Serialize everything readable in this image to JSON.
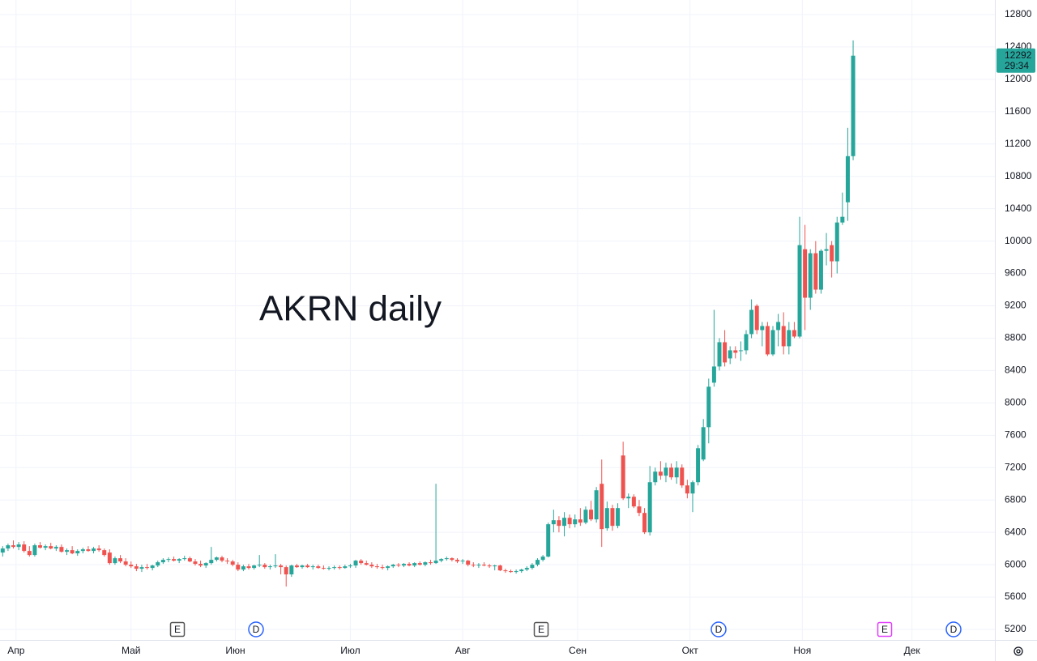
{
  "chart_data": {
    "type": "candlestick",
    "title": "AKRN daily",
    "up_color": "#26a69a",
    "down_color": "#ef5350",
    "ylim": [
      5070,
      12980
    ],
    "xlim": [
      -0.5,
      185.5
    ],
    "grid": true,
    "yticks": [
      5200,
      5600,
      6000,
      6400,
      6800,
      7200,
      7600,
      8000,
      8400,
      8800,
      9200,
      9600,
      10000,
      10400,
      10800,
      11200,
      11600,
      12000,
      12400,
      12800
    ],
    "xticks": [
      {
        "value": 2.5,
        "label": "Апр"
      },
      {
        "value": 24,
        "label": "Май"
      },
      {
        "value": 43.5,
        "label": "Июн"
      },
      {
        "value": 65,
        "label": "Июл"
      },
      {
        "value": 86,
        "label": "Авг"
      },
      {
        "value": 107.5,
        "label": "Сен"
      },
      {
        "value": 128.5,
        "label": "Окт"
      },
      {
        "value": 149.5,
        "label": "Ноя"
      },
      {
        "value": 170,
        "label": "Дек"
      }
    ],
    "last_price": 12292,
    "countdown": "29:34",
    "events": [
      "E",
      "D",
      "E",
      "D",
      "E",
      "D"
    ],
    "ohlc": [
      [
        6150,
        6230,
        6100,
        6200
      ],
      [
        6200,
        6260,
        6170,
        6240
      ],
      [
        6240,
        6300,
        6200,
        6220
      ],
      [
        6220,
        6280,
        6180,
        6250
      ],
      [
        6250,
        6290,
        6150,
        6170
      ],
      [
        6170,
        6230,
        6100,
        6120
      ],
      [
        6120,
        6260,
        6100,
        6240
      ],
      [
        6240,
        6280,
        6200,
        6210
      ],
      [
        6210,
        6250,
        6180,
        6230
      ],
      [
        6230,
        6270,
        6190,
        6200
      ],
      [
        6200,
        6240,
        6170,
        6220
      ],
      [
        6220,
        6250,
        6150,
        6160
      ],
      [
        6160,
        6200,
        6120,
        6180
      ],
      [
        6180,
        6230,
        6130,
        6140
      ],
      [
        6140,
        6190,
        6110,
        6170
      ],
      [
        6170,
        6210,
        6140,
        6190
      ],
      [
        6190,
        6230,
        6160,
        6170
      ],
      [
        6170,
        6220,
        6140,
        6200
      ],
      [
        6200,
        6240,
        6160,
        6180
      ],
      [
        6180,
        6200,
        6100,
        6120
      ],
      [
        6150,
        6190,
        6000,
        6020
      ],
      [
        6020,
        6100,
        6000,
        6080
      ],
      [
        6080,
        6120,
        6020,
        6040
      ],
      [
        6040,
        6080,
        5980,
        6000
      ],
      [
        6000,
        6040,
        5960,
        5980
      ],
      [
        5980,
        6010,
        5920,
        5950
      ],
      [
        5950,
        6000,
        5910,
        5970
      ],
      [
        5970,
        6010,
        5940,
        5960
      ],
      [
        5960,
        6000,
        5930,
        5990
      ],
      [
        5990,
        6050,
        5970,
        6030
      ],
      [
        6030,
        6080,
        6010,
        6060
      ],
      [
        6060,
        6090,
        6030,
        6070
      ],
      [
        6070,
        6100,
        6040,
        6050
      ],
      [
        6050,
        6080,
        6020,
        6070
      ],
      [
        6070,
        6110,
        6050,
        6080
      ],
      [
        6080,
        6100,
        6030,
        6040
      ],
      [
        6040,
        6070,
        5990,
        6010
      ],
      [
        6010,
        6050,
        5970,
        5990
      ],
      [
        5990,
        6030,
        5960,
        6020
      ],
      [
        6020,
        6220,
        6000,
        6060
      ],
      [
        6060,
        6100,
        6040,
        6090
      ],
      [
        6090,
        6110,
        6030,
        6050
      ],
      [
        6050,
        6080,
        6010,
        6040
      ],
      [
        6040,
        6060,
        5980,
        6000
      ],
      [
        6000,
        6030,
        5920,
        5940
      ],
      [
        5940,
        6000,
        5920,
        5980
      ],
      [
        5980,
        6010,
        5940,
        5960
      ],
      [
        5960,
        6000,
        5940,
        5990
      ],
      [
        5990,
        6120,
        5970,
        6000
      ],
      [
        6000,
        6020,
        5950,
        5970
      ],
      [
        5970,
        6000,
        5940,
        5980
      ],
      [
        5980,
        6130,
        5960,
        5990
      ],
      [
        5990,
        6010,
        5880,
        5970
      ],
      [
        5970,
        5990,
        5730,
        5880
      ],
      [
        5880,
        6000,
        5850,
        5990
      ],
      [
        5990,
        6010,
        5960,
        5970
      ],
      [
        5970,
        6000,
        5950,
        5990
      ],
      [
        5990,
        6010,
        5960,
        5970
      ],
      [
        5970,
        6000,
        5940,
        5980
      ],
      [
        5980,
        6000,
        5950,
        5960
      ],
      [
        5960,
        5990,
        5940,
        5950
      ],
      [
        5950,
        5980,
        5930,
        5960
      ],
      [
        5960,
        5990,
        5940,
        5970
      ],
      [
        5970,
        5990,
        5940,
        5960
      ],
      [
        5960,
        6000,
        5950,
        5980
      ],
      [
        5980,
        6010,
        5960,
        5990
      ],
      [
        5990,
        6060,
        5960,
        6050
      ],
      [
        6050,
        6070,
        6000,
        6020
      ],
      [
        6020,
        6050,
        5990,
        6000
      ],
      [
        6000,
        6030,
        5960,
        5980
      ],
      [
        5980,
        6010,
        5950,
        5970
      ],
      [
        5970,
        6000,
        5940,
        5960
      ],
      [
        5960,
        5990,
        5930,
        5980
      ],
      [
        5980,
        6010,
        5960,
        6000
      ],
      [
        6000,
        6020,
        5970,
        5990
      ],
      [
        5990,
        6020,
        5970,
        6010
      ],
      [
        6010,
        6030,
        5980,
        5990
      ],
      [
        5990,
        6030,
        5970,
        6020
      ],
      [
        6020,
        6040,
        5990,
        6000
      ],
      [
        6000,
        6040,
        5980,
        6030
      ],
      [
        6030,
        6060,
        6000,
        6020
      ],
      [
        6020,
        7000,
        6010,
        6050
      ],
      [
        6050,
        6080,
        6030,
        6070
      ],
      [
        6070,
        6100,
        6050,
        6080
      ],
      [
        6080,
        6090,
        6040,
        6060
      ],
      [
        6060,
        6080,
        6020,
        6040
      ],
      [
        6040,
        6070,
        6010,
        6050
      ],
      [
        6050,
        6060,
        5980,
        6000
      ],
      [
        6000,
        6030,
        5970,
        5990
      ],
      [
        5990,
        6020,
        5960,
        6000
      ],
      [
        6000,
        6030,
        5980,
        5990
      ],
      [
        5990,
        6010,
        5960,
        5980
      ],
      [
        5980,
        6000,
        5930,
        5990
      ],
      [
        5990,
        6000,
        5920,
        5930
      ],
      [
        5930,
        5950,
        5900,
        5920
      ],
      [
        5920,
        5940,
        5900,
        5910
      ],
      [
        5910,
        5940,
        5890,
        5920
      ],
      [
        5920,
        5950,
        5900,
        5940
      ],
      [
        5940,
        5980,
        5920,
        5960
      ],
      [
        5960,
        6020,
        5940,
        6000
      ],
      [
        6000,
        6080,
        5980,
        6060
      ],
      [
        6060,
        6120,
        6040,
        6100
      ],
      [
        6100,
        6520,
        6090,
        6500
      ],
      [
        6500,
        6680,
        6400,
        6550
      ],
      [
        6550,
        6600,
        6400,
        6480
      ],
      [
        6480,
        6650,
        6350,
        6580
      ],
      [
        6580,
        6620,
        6450,
        6500
      ],
      [
        6500,
        6620,
        6460,
        6560
      ],
      [
        6560,
        6700,
        6480,
        6520
      ],
      [
        6520,
        6720,
        6500,
        6680
      ],
      [
        6680,
        6790,
        6540,
        6560
      ],
      [
        6560,
        6960,
        6520,
        6920
      ],
      [
        7000,
        7300,
        6220,
        6440
      ],
      [
        6450,
        6780,
        6420,
        6700
      ],
      [
        6700,
        6740,
        6420,
        6480
      ],
      [
        6480,
        6760,
        6450,
        6700
      ],
      [
        7350,
        7520,
        6800,
        6820
      ],
      [
        6820,
        6880,
        6700,
        6840
      ],
      [
        6840,
        6870,
        6700,
        6720
      ],
      [
        6720,
        6800,
        6600,
        6640
      ],
      [
        6640,
        6700,
        6380,
        6400
      ],
      [
        6400,
        7220,
        6360,
        7020
      ],
      [
        7020,
        7200,
        6980,
        7150
      ],
      [
        7150,
        7280,
        7050,
        7100
      ],
      [
        7100,
        7260,
        7020,
        7200
      ],
      [
        7200,
        7250,
        7050,
        7080
      ],
      [
        7080,
        7280,
        7000,
        7200
      ],
      [
        7200,
        7240,
        6950,
        6980
      ],
      [
        6980,
        7050,
        6820,
        6880
      ],
      [
        6880,
        7040,
        6650,
        7020
      ],
      [
        7020,
        7480,
        6980,
        7440
      ],
      [
        7300,
        7800,
        7280,
        7700
      ],
      [
        7700,
        8300,
        7500,
        8200
      ],
      [
        8250,
        9150,
        8200,
        8450
      ],
      [
        8450,
        8800,
        8400,
        8750
      ],
      [
        8750,
        8900,
        8450,
        8500
      ],
      [
        8550,
        8700,
        8480,
        8650
      ],
      [
        8650,
        8700,
        8550,
        8620
      ],
      [
        8640,
        8760,
        8520,
        8650
      ],
      [
        8650,
        8900,
        8600,
        8850
      ],
      [
        8850,
        9280,
        8800,
        9150
      ],
      [
        9200,
        9220,
        8850,
        8900
      ],
      [
        8900,
        9000,
        8700,
        8950
      ],
      [
        8950,
        9000,
        8580,
        8600
      ],
      [
        8600,
        8950,
        8580,
        8900
      ],
      [
        8900,
        9100,
        8700,
        9000
      ],
      [
        8950,
        9120,
        8600,
        8700
      ],
      [
        8700,
        9000,
        8600,
        8900
      ],
      [
        8900,
        9000,
        8800,
        8820
      ],
      [
        8820,
        10300,
        8800,
        9950
      ],
      [
        9900,
        10200,
        8900,
        9300
      ],
      [
        9300,
        9900,
        9150,
        9850
      ],
      [
        9850,
        10000,
        9350,
        9400
      ],
      [
        9400,
        9900,
        9350,
        9880
      ],
      [
        9880,
        10100,
        9700,
        9900
      ],
      [
        9950,
        10000,
        9550,
        9750
      ],
      [
        9750,
        10300,
        9600,
        10230
      ],
      [
        10230,
        10600,
        10200,
        10300
      ],
      [
        10480,
        11400,
        10250,
        11050
      ],
      [
        11050,
        12480,
        11000,
        12292
      ]
    ]
  }
}
